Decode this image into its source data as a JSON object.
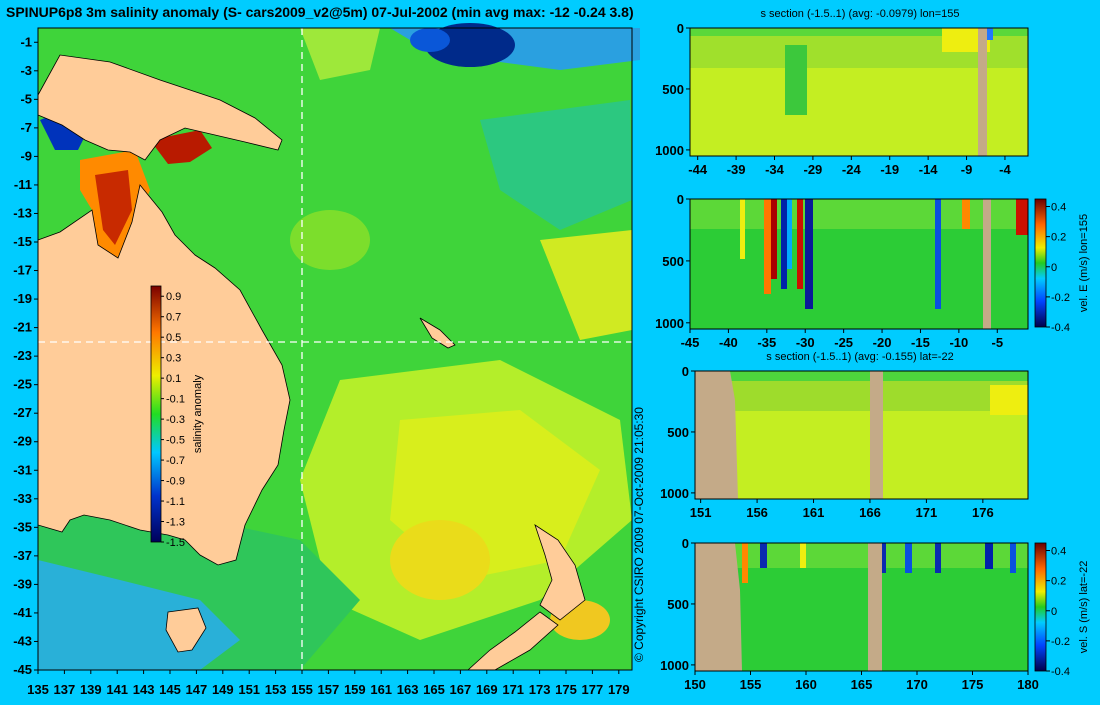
{
  "copyright": "© Copyright CSIRO 2009   07-Oct-2009 21:05:30",
  "map": {
    "title": "SPINUP6p8 3m salinity anomaly (S- cars2009_v2@5m) 07-Jul-2002 (min avg max: -12 -0.24 3.8)",
    "colorbar_label": "salinity anomaly"
  },
  "panels": [
    {
      "title": "s section (-1.5..1) (avg: -0.0979) lon=155",
      "colorbar_label": ""
    },
    {
      "title": "",
      "colorbar_label": "vel. E (m/s) lon=155"
    },
    {
      "title": "s section (-1.5..1) (avg: -0.155) lat=-22",
      "colorbar_label": ""
    },
    {
      "title": "",
      "colorbar_label": "vel. S (m/s) lat=-22"
    }
  ],
  "colors": {
    "background": "#00ccff",
    "land": "#ffcc99",
    "section_land": "#c4aa88",
    "section_line": "#ffffff"
  },
  "chart_data": [
    {
      "type": "heatmap",
      "title": "SPINUP6p8 3m salinity anomaly (S- cars2009_v2@5m) 07-Jul-2002 (min avg max: -12 -0.24 3.8)",
      "variable": "salinity anomaly",
      "min": -12,
      "avg": -0.24,
      "max": 3.8,
      "x_ticks": [
        135,
        137,
        139,
        141,
        143,
        145,
        147,
        149,
        151,
        153,
        155,
        157,
        159,
        161,
        163,
        165,
        167,
        169,
        171,
        173,
        175,
        177,
        179
      ],
      "y_ticks": [
        -1,
        -3,
        -5,
        -7,
        -9,
        -11,
        -13,
        -15,
        -17,
        -19,
        -21,
        -23,
        -25,
        -27,
        -29,
        -31,
        -33,
        -35,
        -37,
        -39,
        -41,
        -43,
        -45
      ],
      "xlim": [
        135,
        180
      ],
      "ylim": [
        -45,
        0
      ],
      "colorbar": {
        "label": "salinity anomaly",
        "ticks": [
          0.9,
          0.7,
          0.5,
          0.3,
          0.1,
          -0.1,
          -0.3,
          -0.5,
          -0.7,
          -0.9,
          -1.1,
          -1.3,
          -1.5
        ],
        "range": [
          -1.5,
          1.0
        ]
      },
      "section_lines": {
        "lon": 155,
        "lat": -22
      }
    },
    {
      "type": "heatmap",
      "title": "s section (-1.5..1) (avg: -0.0979) lon=155",
      "avg": -0.0979,
      "x_ticks": [
        -44,
        -39,
        -34,
        -29,
        -24,
        -19,
        -14,
        -9,
        -4
      ],
      "xlim": [
        -45,
        -1
      ],
      "y_ticks": [
        0,
        500,
        1000
      ],
      "ylim": [
        1050,
        0
      ],
      "color_range": [
        -1.5,
        1
      ]
    },
    {
      "type": "heatmap",
      "colorbar_label": "vel. E (m/s) lon=155",
      "x_ticks": [
        -45,
        -40,
        -35,
        -30,
        -25,
        -20,
        -15,
        -10,
        -5
      ],
      "xlim": [
        -45,
        -1
      ],
      "y_ticks": [
        0,
        500,
        1000
      ],
      "ylim": [
        1050,
        0
      ],
      "colorbar": {
        "ticks": [
          0.4,
          0.2,
          0,
          -0.2,
          -0.4
        ],
        "range": [
          -0.4,
          0.45
        ]
      }
    },
    {
      "type": "heatmap",
      "title": "s section (-1.5..1) (avg: -0.155) lat=-22",
      "avg": -0.155,
      "x_ticks": [
        151,
        156,
        161,
        166,
        171,
        176
      ],
      "xlim": [
        150.5,
        180
      ],
      "y_ticks": [
        0,
        500,
        1000
      ],
      "ylim": [
        1050,
        0
      ],
      "color_range": [
        -1.5,
        1
      ]
    },
    {
      "type": "heatmap",
      "colorbar_label": "vel. S (m/s) lat=-22",
      "x_ticks": [
        150,
        155,
        160,
        165,
        170,
        175,
        180
      ],
      "xlim": [
        150,
        180
      ],
      "y_ticks": [
        0,
        500,
        1000
      ],
      "ylim": [
        1050,
        0
      ],
      "colorbar": {
        "ticks": [
          0.4,
          0.2,
          0,
          -0.2,
          -0.4
        ],
        "range": [
          -0.4,
          0.45
        ]
      }
    }
  ]
}
